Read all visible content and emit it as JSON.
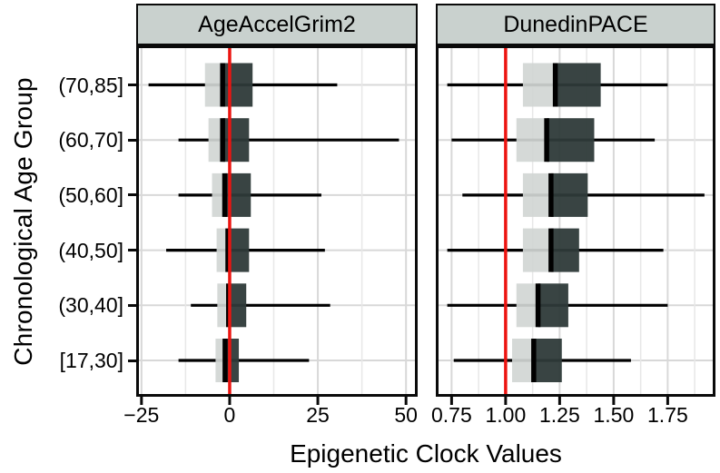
{
  "figure": {
    "xlabel": "Epigenetic Clock Values",
    "ylabel": "Chronological Age Group"
  },
  "chart_data": {
    "type": "boxplot",
    "orientation": "horizontal",
    "facets": 2,
    "grid": true,
    "categories_top_to_bottom": [
      "(70,85]",
      "(60,70]",
      "(50,60]",
      "(40,50]",
      "(30,40]",
      "[17,30]"
    ],
    "colors": {
      "strip_bg": "#c9d1ce",
      "box_low_half": "#d1d6d4",
      "box_high_half": "#2e3a39",
      "median_line": "#000000",
      "whisker": "#000000",
      "reference_line": "#ec1410",
      "grid_major": "#d8d8d8",
      "grid_minor": "#e7e7e7",
      "panel_border": "#0a0a0a"
    },
    "panels": [
      {
        "title": "AgeAccelGrim2",
        "xlim": [
          -26.5,
          53.3
        ],
        "xticks": [
          -25,
          0,
          25,
          50
        ],
        "xtick_labels": [
          "−25",
          "0",
          "25",
          "50"
        ],
        "grid_step": 12.5,
        "reference_line_x": 0,
        "boxes": [
          {
            "category": "(70,85]",
            "whisker_low": -23,
            "q1": -7,
            "median": -2,
            "q3": 6.5,
            "whisker_high": 30.5
          },
          {
            "category": "(60,70]",
            "whisker_low": -14.5,
            "q1": -6,
            "median": -2,
            "q3": 5.5,
            "whisker_high": 48
          },
          {
            "category": "(50,60]",
            "whisker_low": -14.5,
            "q1": -5,
            "median": -1.4,
            "q3": 6,
            "whisker_high": 26
          },
          {
            "category": "(40,50]",
            "whisker_low": -18,
            "q1": -3.7,
            "median": -0.5,
            "q3": 5.5,
            "whisker_high": 27
          },
          {
            "category": "(30,40]",
            "whisker_low": -11,
            "q1": -3.5,
            "median": -0.3,
            "q3": 4.7,
            "whisker_high": 28.5
          },
          {
            "category": "[17,30]",
            "whisker_low": -14.5,
            "q1": -4,
            "median": -1.3,
            "q3": 2.6,
            "whisker_high": 22.5
          }
        ]
      },
      {
        "title": "DunedinPACE",
        "xlim": [
          0.677,
          1.971
        ],
        "xticks": [
          0.75,
          1.0,
          1.25,
          1.5,
          1.75
        ],
        "xtick_labels": [
          "0.75",
          "1.00",
          "1.25",
          "1.50",
          "1.75"
        ],
        "grid_step": 0.125,
        "reference_line_x": 1.0,
        "boxes": [
          {
            "category": "(70,85]",
            "whisker_low": 0.73,
            "q1": 1.08,
            "median": 1.23,
            "q3": 1.44,
            "whisker_high": 1.75
          },
          {
            "category": "(60,70]",
            "whisker_low": 0.75,
            "q1": 1.05,
            "median": 1.19,
            "q3": 1.41,
            "whisker_high": 1.69
          },
          {
            "category": "(50,60]",
            "whisker_low": 0.8,
            "q1": 1.08,
            "median": 1.21,
            "q3": 1.38,
            "whisker_high": 1.92
          },
          {
            "category": "(40,50]",
            "whisker_low": 0.73,
            "q1": 1.08,
            "median": 1.21,
            "q3": 1.34,
            "whisker_high": 1.73
          },
          {
            "category": "(30,40]",
            "whisker_low": 0.73,
            "q1": 1.05,
            "median": 1.15,
            "q3": 1.29,
            "whisker_high": 1.75
          },
          {
            "category": "[17,30]",
            "whisker_low": 0.76,
            "q1": 1.03,
            "median": 1.13,
            "q3": 1.26,
            "whisker_high": 1.58
          }
        ]
      }
    ]
  }
}
